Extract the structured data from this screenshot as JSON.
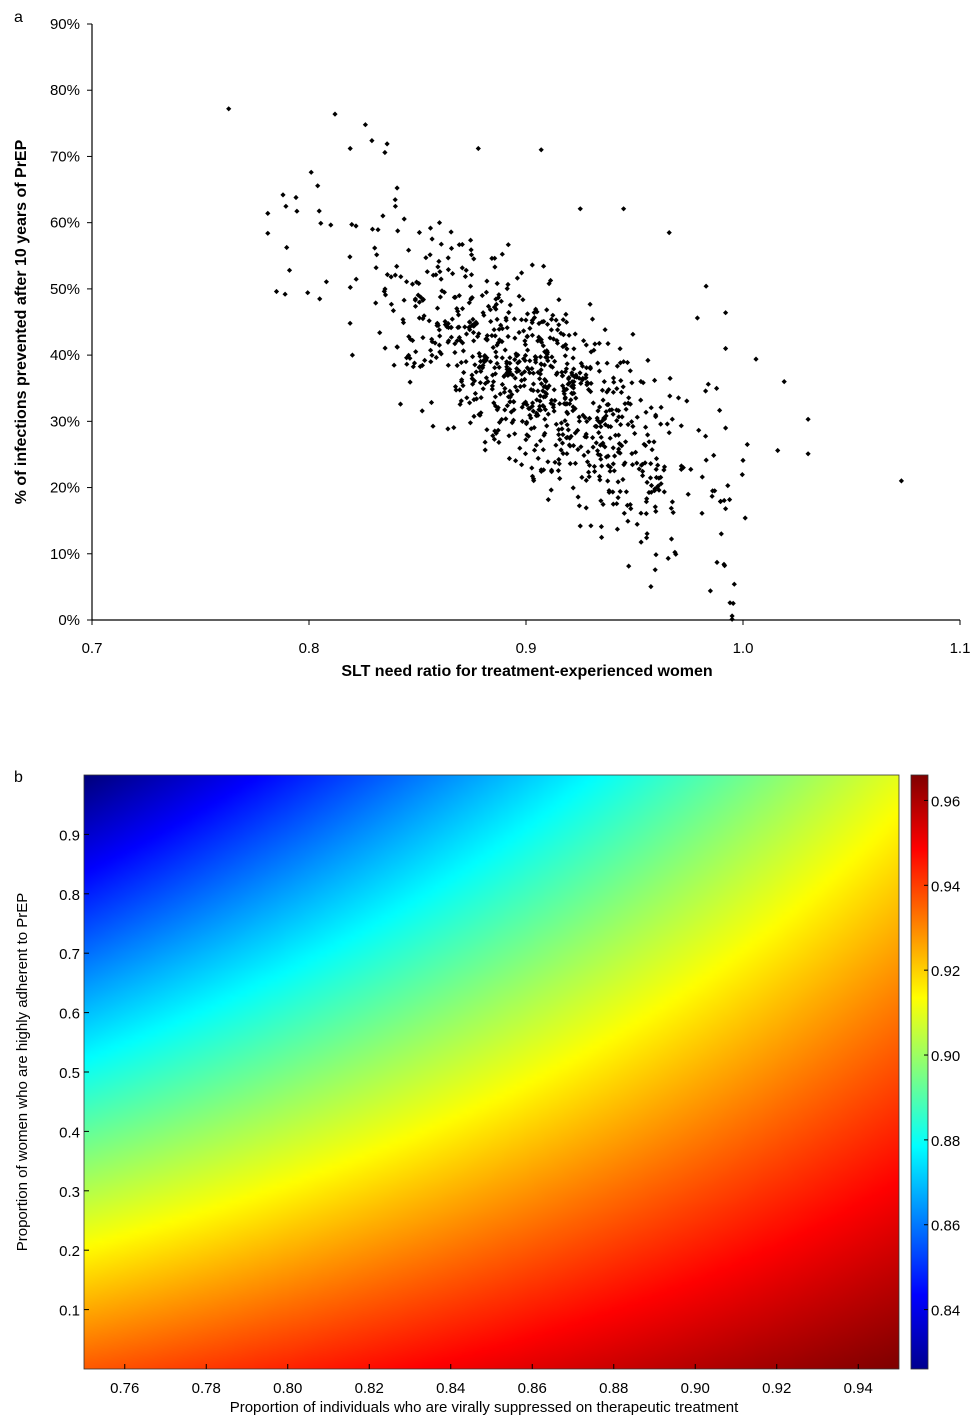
{
  "chart_data": [
    {
      "panel_label": "a",
      "type": "scatter",
      "xlabel": "SLT need ratio for treatment-experienced women",
      "ylabel": "% of infections prevented after 10 years of PrEP",
      "xlim": [
        0.7,
        1.1
      ],
      "ylim": [
        0,
        90
      ],
      "x_ticks": [
        0.7,
        0.8,
        0.9,
        1.0,
        1.1
      ],
      "x_tick_labels": [
        "0.7",
        "0.8",
        "0.9",
        "1.0",
        "1.1"
      ],
      "y_ticks": [
        0,
        10,
        20,
        30,
        40,
        50,
        60,
        70,
        80,
        90
      ],
      "y_tick_labels": [
        "0%",
        "10%",
        "20%",
        "30%",
        "40%",
        "50%",
        "60%",
        "70%",
        "80%",
        "90%"
      ],
      "grid": false,
      "marker_color": "#000000",
      "cluster": {
        "count": 900,
        "seed": 1729,
        "x_mean": 0.905,
        "x_sd": 0.037,
        "y_intercept_at_mean": 36.0,
        "slope_per_unit_x": -215,
        "y_noise_sd": 7.3
      },
      "points": [
        [
          0.763,
          77.2
        ],
        [
          0.812,
          76.4
        ],
        [
          0.826,
          74.8
        ],
        [
          0.819,
          71.2
        ],
        [
          0.829,
          72.4
        ],
        [
          0.836,
          71.9
        ],
        [
          0.801,
          67.6
        ],
        [
          0.835,
          70.6
        ],
        [
          0.878,
          71.2
        ],
        [
          0.907,
          71.0
        ],
        [
          0.781,
          58.4
        ],
        [
          0.781,
          61.4
        ],
        [
          0.785,
          49.6
        ],
        [
          0.789,
          49.2
        ],
        [
          0.791,
          52.8
        ],
        [
          0.788,
          64.2
        ],
        [
          0.794,
          63.8
        ],
        [
          0.82,
          40.0
        ],
        [
          0.845,
          39.6
        ],
        [
          0.874,
          32.8
        ],
        [
          0.903,
          21.7
        ],
        [
          0.925,
          14.2
        ],
        [
          0.945,
          62.1
        ],
        [
          0.925,
          62.1
        ],
        [
          0.966,
          58.5
        ],
        [
          0.983,
          50.4
        ],
        [
          0.979,
          45.6
        ],
        [
          0.984,
          35.6
        ],
        [
          0.992,
          46.4
        ],
        [
          0.992,
          41.0
        ],
        [
          1.006,
          39.4
        ],
        [
          1.019,
          36.0
        ],
        [
          1.03,
          30.3
        ],
        [
          0.992,
          29.0
        ],
        [
          1.002,
          26.5
        ],
        [
          1.0,
          24.1
        ],
        [
          1.016,
          25.6
        ],
        [
          1.03,
          25.1
        ],
        [
          1.073,
          21.0
        ],
        [
          1.001,
          15.4
        ],
        [
          0.996,
          5.4
        ],
        [
          0.994,
          2.6
        ],
        [
          0.995,
          0.6
        ],
        [
          0.995,
          0.1
        ],
        [
          0.988,
          8.7
        ],
        [
          0.985,
          4.4
        ],
        [
          0.99,
          13.0
        ],
        [
          0.993,
          20.3
        ],
        [
          0.992,
          16.8
        ],
        [
          0.986,
          19.5
        ]
      ]
    },
    {
      "panel_label": "b",
      "type": "heatmap",
      "xlabel": "Proportion of individuals who are virally suppressed on therapeutic treatment",
      "ylabel": "Proportion of women who are highly adherent to PrEP",
      "xlim": [
        0.75,
        0.95
      ],
      "ylim": [
        0.0,
        1.0
      ],
      "x_ticks": [
        0.76,
        0.78,
        0.8,
        0.82,
        0.84,
        0.86,
        0.88,
        0.9,
        0.92,
        0.94
      ],
      "x_tick_labels": [
        "0.76",
        "0.78",
        "0.80",
        "0.82",
        "0.84",
        "0.86",
        "0.88",
        "0.90",
        "0.92",
        "0.94"
      ],
      "y_ticks": [
        0.1,
        0.2,
        0.3,
        0.4,
        0.5,
        0.6,
        0.7,
        0.8,
        0.9
      ],
      "y_tick_labels": [
        "0.1",
        "0.2",
        "0.3",
        "0.4",
        "0.5",
        "0.6",
        "0.7",
        "0.8",
        "0.9"
      ],
      "colormap": "jet",
      "colorbar": {
        "min": 0.826,
        "max": 0.966,
        "ticks": [
          0.84,
          0.86,
          0.88,
          0.9,
          0.92,
          0.94,
          0.96
        ],
        "tick_labels": [
          "0.84",
          "0.86",
          "0.88",
          "0.90",
          "0.92",
          "0.94",
          "0.96"
        ]
      },
      "corner_values": {
        "x0.75_y0.0": 0.936,
        "x0.95_y0.0": 0.966,
        "x0.75_y1.0": 0.826,
        "x0.95_y1.0": 0.91
      }
    }
  ]
}
